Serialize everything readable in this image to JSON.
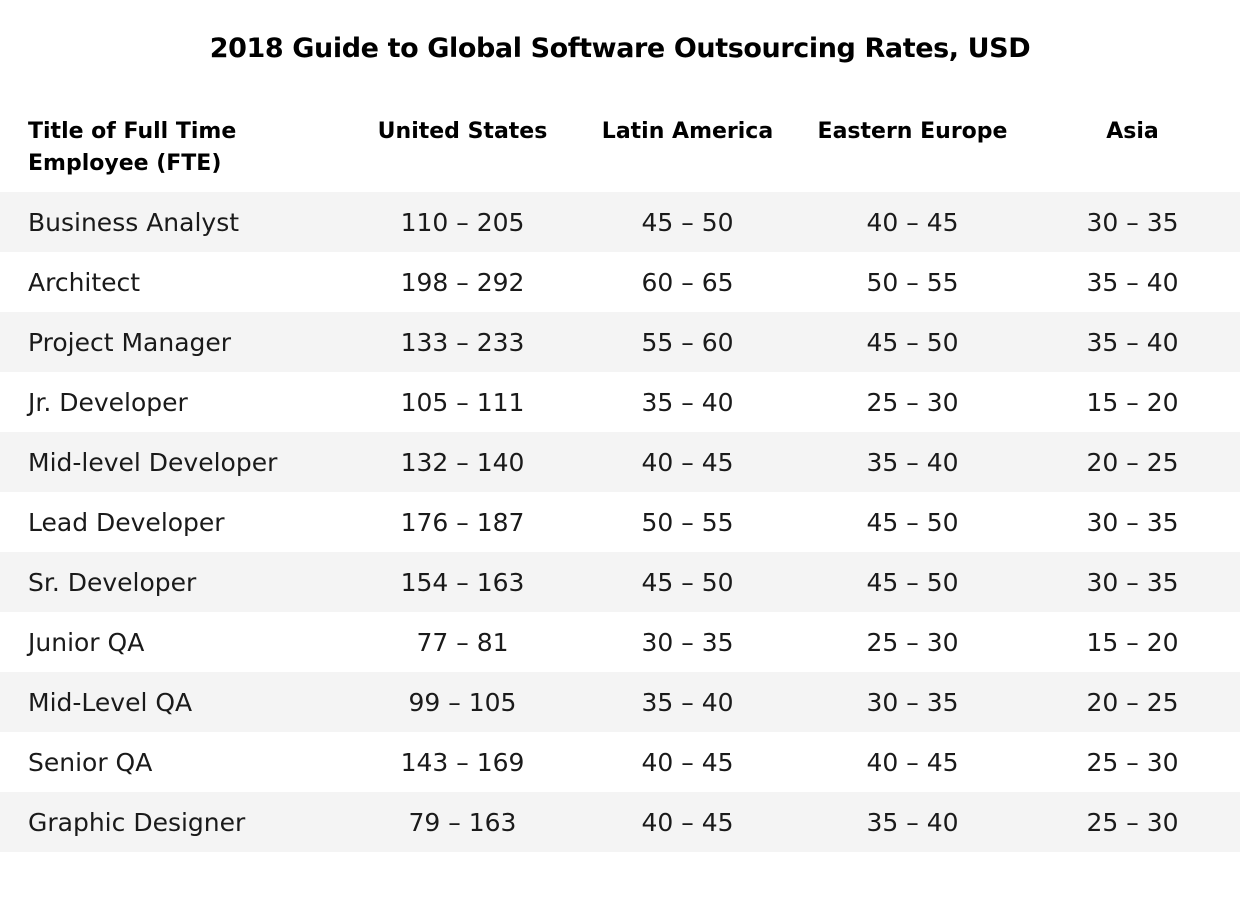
{
  "chart_data": {
    "type": "table",
    "title": "2018 Guide to Global Software Outsourcing Rates, USD",
    "columns": [
      "Title of Full Time Employee (FTE)",
      "United States",
      "Latin America",
      "Eastern Europe",
      "Asia"
    ],
    "rows": [
      {
        "role": "Business Analyst",
        "values": [
          "110 – 205",
          "45 – 50",
          "40 – 45",
          "30 – 35"
        ]
      },
      {
        "role": "Architect",
        "values": [
          "198 – 292",
          "60 – 65",
          "50 – 55",
          "35 – 40"
        ]
      },
      {
        "role": "Project Manager",
        "values": [
          "133 – 233",
          "55 – 60",
          "45 – 50",
          "35 – 40"
        ]
      },
      {
        "role": "Jr. Developer",
        "values": [
          "105 – 111",
          "35 – 40",
          "25 – 30",
          "15 – 20"
        ]
      },
      {
        "role": "Mid-level Developer",
        "values": [
          "132 – 140",
          "40 – 45",
          "35 – 40",
          "20 – 25"
        ]
      },
      {
        "role": "Lead Developer",
        "values": [
          "176 – 187",
          "50 – 55",
          "45 – 50",
          "30 – 35"
        ]
      },
      {
        "role": "Sr. Developer",
        "values": [
          "154 – 163",
          "45 – 50",
          "45 – 50",
          "30 – 35"
        ]
      },
      {
        "role": "Junior QA",
        "values": [
          "77 – 81",
          "30 – 35",
          "25 – 30",
          "15 – 20"
        ]
      },
      {
        "role": "Mid-Level QA",
        "values": [
          "99 – 105",
          "35 – 40",
          "30 – 35",
          "20 – 25"
        ]
      },
      {
        "role": "Senior QA",
        "values": [
          "143 – 169",
          "40 – 45",
          "40 – 45",
          "25 – 30"
        ]
      },
      {
        "role": "Graphic Designer",
        "values": [
          "79 – 163",
          "40 – 45",
          "35 – 40",
          "25 – 30"
        ]
      }
    ]
  },
  "colors": {
    "stripe": "#f4f4f4",
    "background": "#ffffff",
    "text": "#1a1a1a"
  }
}
